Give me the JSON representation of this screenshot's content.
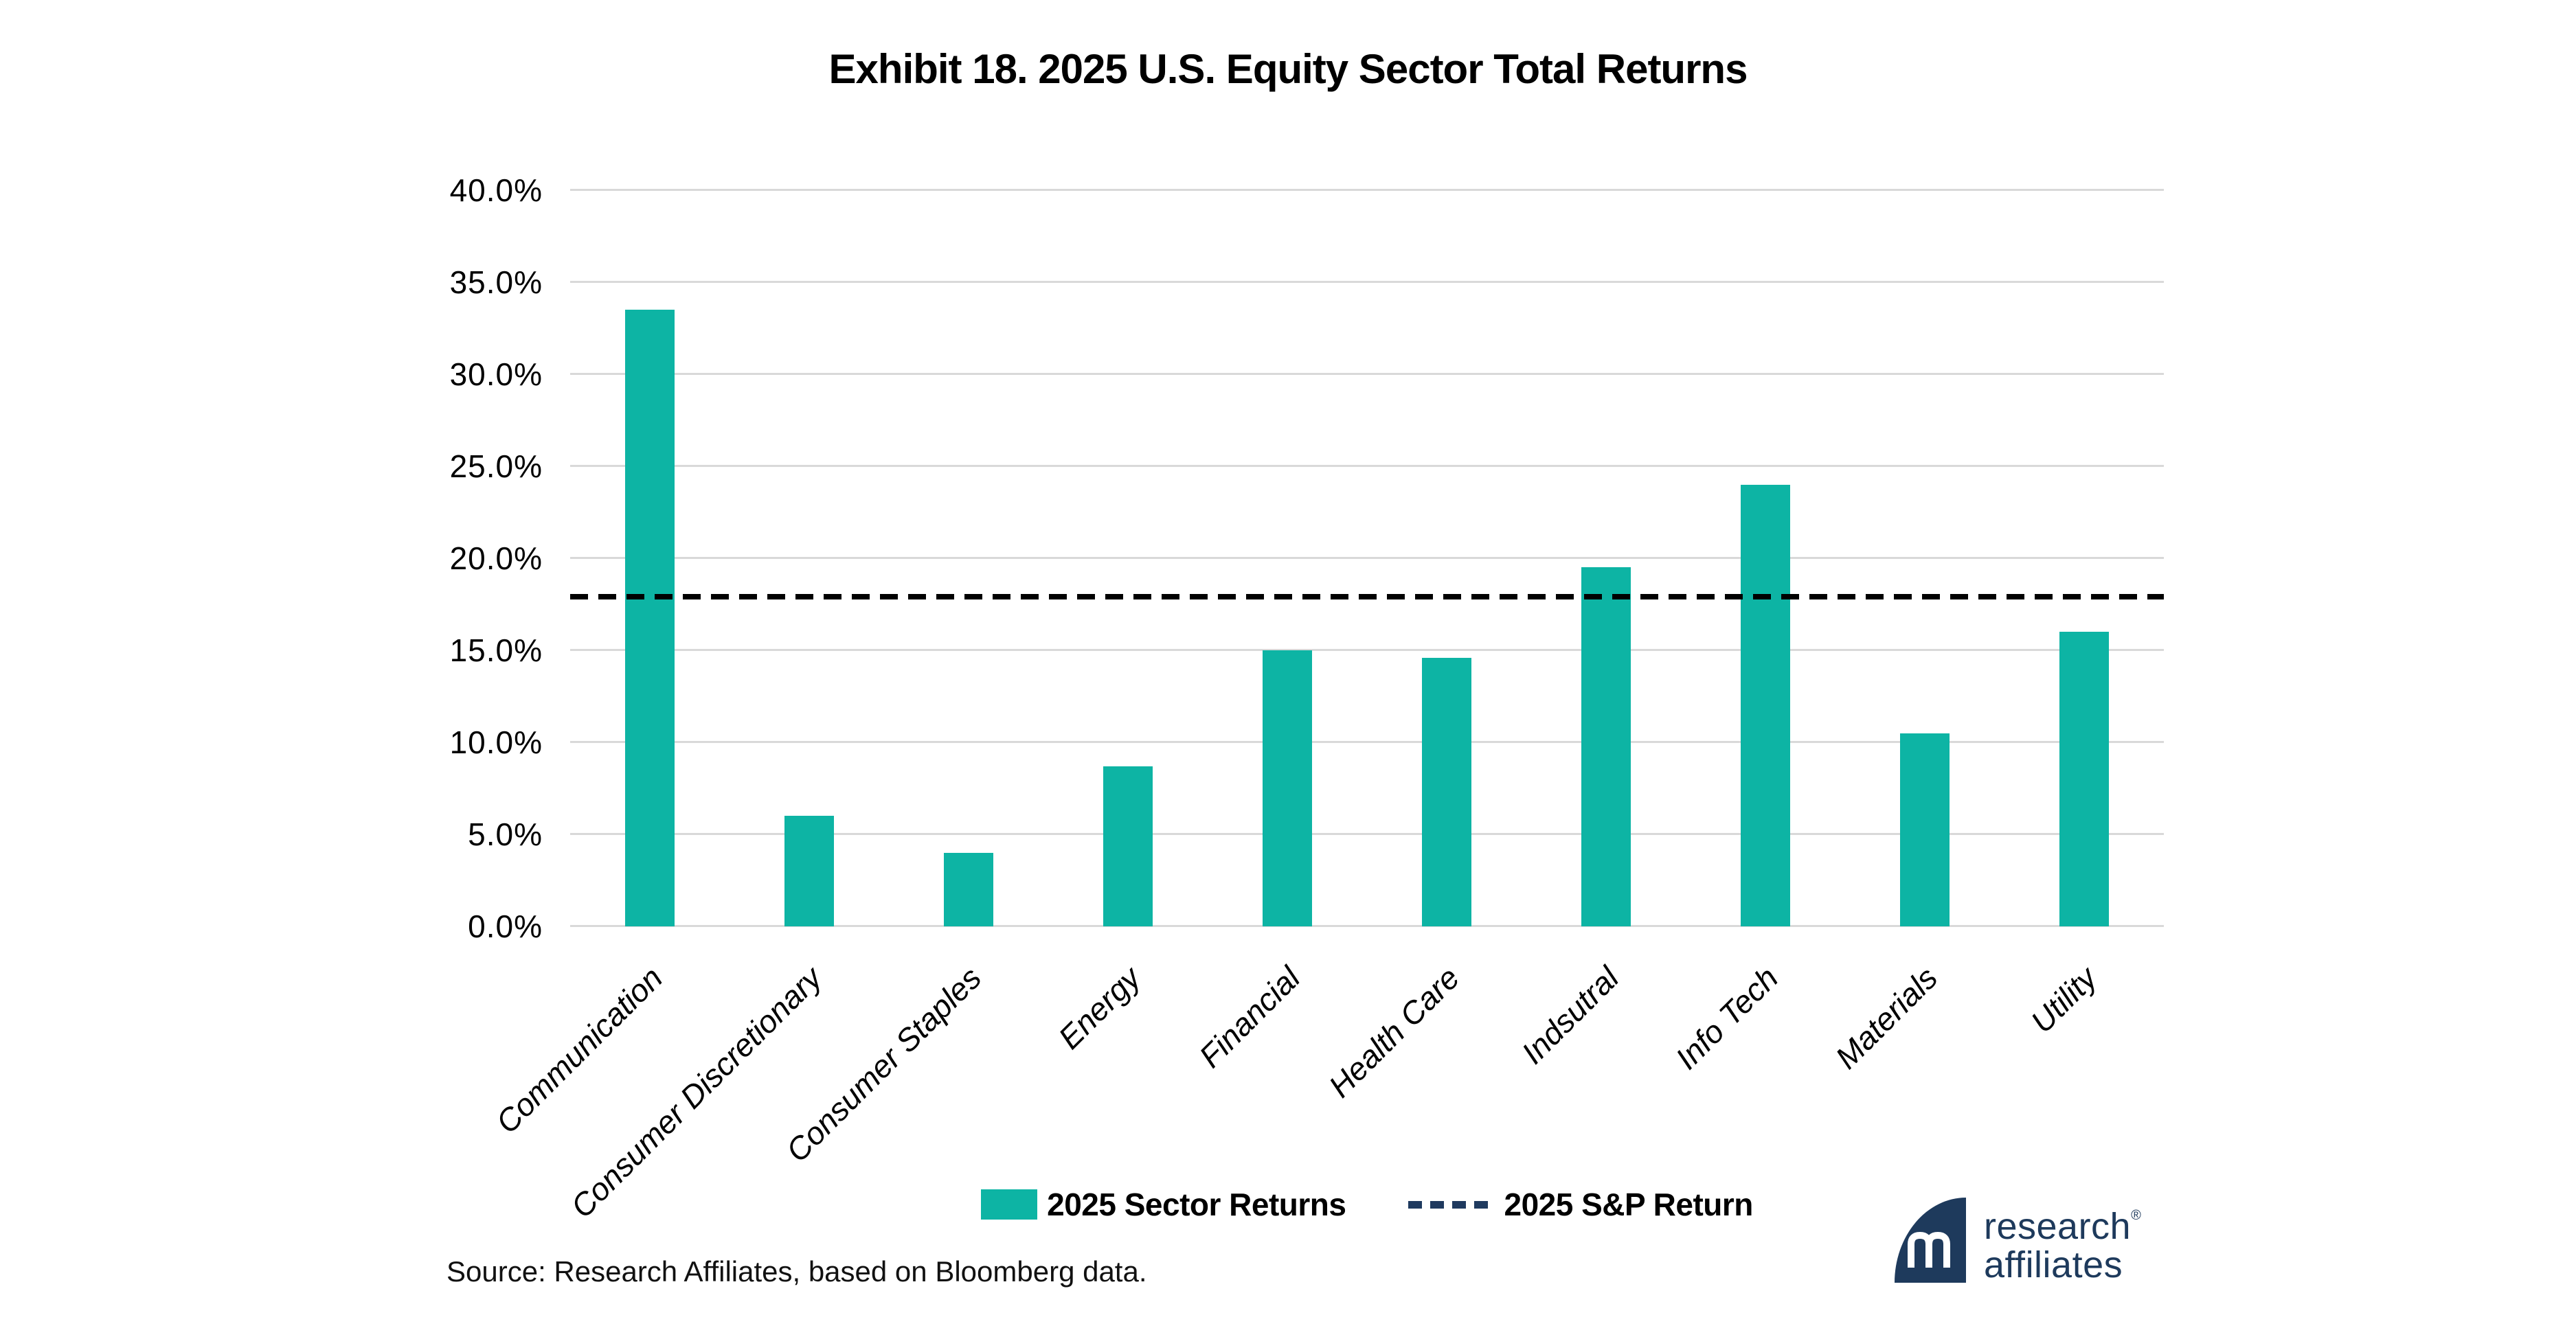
{
  "title": "Exhibit 18. 2025 U.S. Equity Sector Total Returns",
  "chart_data": {
    "type": "bar",
    "title": "Exhibit 18. 2025 U.S. Equity Sector Total Returns",
    "categories": [
      "Communication",
      "Consumer Discretionary",
      "Consumer Staples",
      "Energy",
      "Financial",
      "Health Care",
      "Indsutral",
      "Info Tech",
      "Materials",
      "Utility"
    ],
    "series": [
      {
        "name": "2025 Sector Returns",
        "values": [
          33.5,
          6.0,
          4.0,
          8.7,
          15.0,
          14.6,
          19.5,
          24.0,
          10.5,
          16.0
        ]
      }
    ],
    "reference_line": {
      "name": "2025 S&P Return",
      "value": 17.9,
      "style": "dashed"
    },
    "xlabel": "",
    "ylabel": "",
    "ylim": [
      0,
      40
    ],
    "ytick_step": 5,
    "ytick_labels": [
      "0.0%",
      "5.0%",
      "10.0%",
      "15.0%",
      "20.0%",
      "25.0%",
      "30.0%",
      "35.0%",
      "40.0%"
    ],
    "grid": "horizontal",
    "legend_position": "bottom",
    "bar_color": "#0db4a4",
    "reference_line_color": "#000000",
    "legend_dash_color": "#1f3a5f",
    "gridline_color": "#d9d9d9"
  },
  "legend": {
    "sector_label": "2025 Sector Returns",
    "sp_label": "2025 S&P Return"
  },
  "source": "Source: Research Affiliates, based on Bloomberg data.",
  "logo": {
    "line1": "research",
    "line2": "affiliates",
    "registered": "®"
  },
  "colors": {
    "bar_teal": "#0db4a4",
    "brand_navy": "#1e3a5c",
    "gridline_gray": "#d9d9d9",
    "reference_black": "#000000"
  }
}
